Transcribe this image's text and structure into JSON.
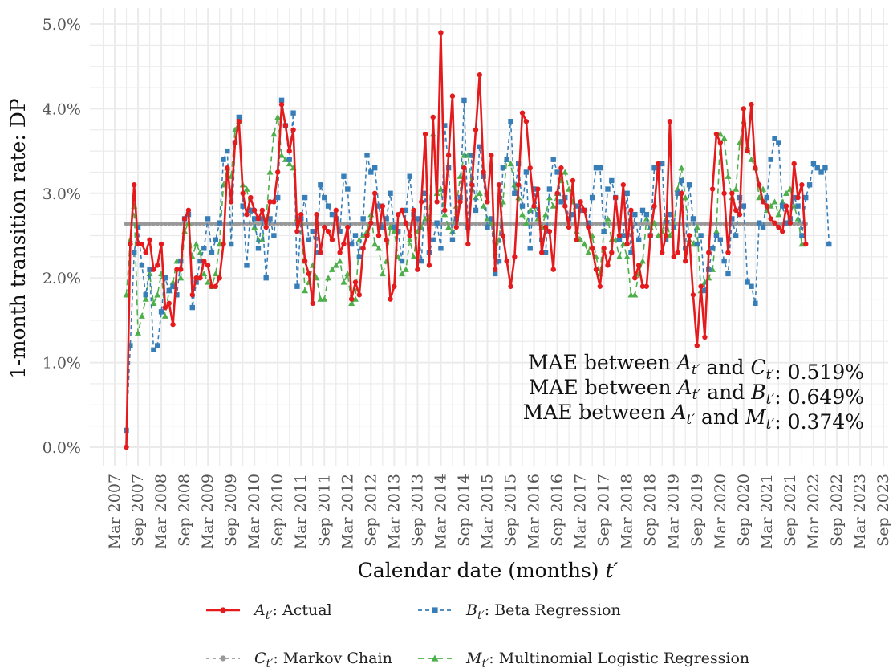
{
  "chart_data": {
    "type": "line",
    "title": "",
    "xlabel": "Calendar date (months)",
    "xlabel_var": "t′",
    "ylabel": "1-month transition rate: DP",
    "ylim": [
      0,
      5.2
    ],
    "yticks": [
      0,
      1,
      2,
      3,
      4,
      5
    ],
    "ytick_labels": [
      "0.0%",
      "1.0%",
      "2.0%",
      "3.0%",
      "4.0%",
      "5.0%"
    ],
    "x_start": "2007-03",
    "xtick_labels": [
      "Mar 2007",
      "Sep 2007",
      "Mar 2008",
      "Sep 2008",
      "Mar 2009",
      "Sep 2009",
      "Mar 2010",
      "Sep 2010",
      "Mar 2011",
      "Sep 2011",
      "Mar 2012",
      "Sep 2012",
      "Mar 2013",
      "Sep 2013",
      "Mar 2014",
      "Sep 2014",
      "Mar 2015",
      "Sep 2015",
      "Mar 2016",
      "Sep 2016",
      "Mar 2017",
      "Sep 2017",
      "Mar 2018",
      "Sep 2018",
      "Mar 2019",
      "Sep 2019",
      "Mar 2020",
      "Sep 2020",
      "Mar 2021",
      "Sep 2021",
      "Mar 2022",
      "Sep 2022",
      "Mar 2023",
      "Sep 2023"
    ],
    "xtick_months": [
      0,
      6,
      12,
      18,
      24,
      30,
      36,
      42,
      48,
      54,
      60,
      66,
      72,
      78,
      84,
      90,
      96,
      102,
      108,
      114,
      120,
      126,
      132,
      138,
      144,
      150,
      156,
      162,
      168,
      174,
      180,
      186,
      192,
      198
    ],
    "first_point_month": 3,
    "annotations": [
      {
        "prefix": "MAE between ",
        "var1": "A",
        "mid": " and ",
        "var2": "C",
        "value": ": 0.519%"
      },
      {
        "prefix": "MAE between ",
        "var1": "A",
        "mid": " and ",
        "var2": "B",
        "value": ": 0.649%"
      },
      {
        "prefix": "MAE between ",
        "var1": "A",
        "mid": " and ",
        "var2": "M",
        "value": ": 0.374%"
      }
    ],
    "series": [
      {
        "key": "actual",
        "symbol": "A",
        "name": "Actual",
        "color": "#e41a1c",
        "dash": "",
        "marker": "circle",
        "values": [
          0,
          2.4,
          3.1,
          2.4,
          2.4,
          2.3,
          2.45,
          2.1,
          2.15,
          2.4,
          1.65,
          1.7,
          1.45,
          2.1,
          2.1,
          2.7,
          2.8,
          1.8,
          2.0,
          2.0,
          2.2,
          2.15,
          1.9,
          1.9,
          2.0,
          2.4,
          3.3,
          2.9,
          3.6,
          3.85,
          3.0,
          2.75,
          2.95,
          2.8,
          2.7,
          2.8,
          2.6,
          2.9,
          2.9,
          3.25,
          4.05,
          3.8,
          3.5,
          3.75,
          2.55,
          2.75,
          2.2,
          2.05,
          1.7,
          2.75,
          2.3,
          2.6,
          2.55,
          2.45,
          2.8,
          2.3,
          2.4,
          2.6,
          1.75,
          1.95,
          1.8,
          2.35,
          2.5,
          2.65,
          3.0,
          2.5,
          2.85,
          2.45,
          1.75,
          1.9,
          2.75,
          2.8,
          2.65,
          2.5,
          2.8,
          2.1,
          2.9,
          3.7,
          2.15,
          3.9,
          2.9,
          4.9,
          2.8,
          3.45,
          4.15,
          2.6,
          2.9,
          3.3,
          2.4,
          3.1,
          3.75,
          4.4,
          3.25,
          2.9,
          3.45,
          2.1,
          3.1,
          2.5,
          2.2,
          1.9,
          2.25,
          3.1,
          3.95,
          3.85,
          3.3,
          2.85,
          3.05,
          2.3,
          2.6,
          2.55,
          2.1,
          3.0,
          3.3,
          2.85,
          2.6,
          3.15,
          2.45,
          2.9,
          2.8,
          2.6,
          2.35,
          2.1,
          1.9,
          2.35,
          2.15,
          2.3,
          2.95,
          2.5,
          3.1,
          2.4,
          2.8,
          2.0,
          2.15,
          1.9,
          1.9,
          2.5,
          2.85,
          3.35,
          2.3,
          2.5,
          3.85,
          2.25,
          2.3,
          3.0,
          2.2,
          2.5,
          1.8,
          1.2,
          1.9,
          1.3,
          2.3,
          3.05,
          3.7,
          3.6,
          3.0,
          2.3,
          3.0,
          2.8,
          2.75,
          4.0,
          3.5,
          4.05,
          3.3,
          3.1,
          2.9,
          2.85,
          2.7,
          2.65,
          2.6,
          2.55,
          2.85,
          2.65,
          3.35,
          2.95,
          3.1,
          2.4
        ]
      },
      {
        "key": "beta",
        "symbol": "B",
        "name": "Beta Regression",
        "color": "#377eb8",
        "dash": "5,4",
        "marker": "square",
        "values": [
          0.2,
          1.2,
          2.3,
          2.6,
          2.15,
          1.8,
          2.1,
          1.15,
          1.2,
          1.6,
          2.0,
          1.85,
          1.9,
          1.8,
          2.2,
          2.7,
          2.75,
          1.65,
          1.95,
          2.2,
          2.35,
          2.7,
          2.3,
          2.45,
          2.65,
          3.4,
          3.5,
          2.4,
          3.6,
          3.9,
          2.85,
          2.15,
          2.8,
          2.7,
          2.35,
          2.7,
          2.0,
          2.7,
          2.5,
          2.95,
          4.1,
          3.8,
          3.4,
          3.95,
          1.9,
          2.7,
          2.95,
          2.45,
          2.55,
          2.3,
          3.1,
          2.95,
          2.85,
          2.75,
          2.7,
          2.55,
          3.2,
          3.05,
          2.4,
          2.5,
          2.25,
          2.7,
          3.45,
          3.25,
          3.3,
          2.85,
          2.6,
          2.7,
          3.0,
          2.6,
          2.55,
          2.2,
          2.8,
          3.2,
          2.75,
          2.7,
          2.2,
          3.0,
          2.3,
          2.45,
          2.65,
          2.35,
          3.8,
          3.3,
          2.45,
          2.7,
          2.95,
          4.1,
          2.6,
          3.45,
          2.8,
          3.55,
          3.2,
          2.6,
          2.7,
          2.05,
          2.2,
          3.3,
          3.4,
          3.85,
          3.0,
          3.35,
          2.85,
          3.25,
          2.35,
          3.05,
          2.75,
          2.45,
          2.3,
          3.05,
          3.4,
          3.25,
          2.9,
          2.95,
          2.7,
          2.75,
          2.85,
          2.8,
          2.8,
          2.65,
          2.95,
          3.3,
          3.3,
          2.55,
          3.05,
          3.15,
          2.95,
          2.45,
          2.5,
          3.0,
          2.3,
          2.75,
          2.45,
          2.8,
          2.75,
          2.5,
          3.3,
          3.3,
          3.35,
          2.45,
          2.75,
          2.6,
          3.0,
          3.15,
          2.35,
          3.1,
          2.7,
          2.4,
          2.5,
          1.85,
          2.1,
          2.35,
          2.5,
          2.45,
          2.2,
          2.05,
          2.7,
          2.5,
          2.95,
          2.85,
          1.95,
          1.9,
          1.7,
          2.65,
          2.6,
          2.95,
          3.4,
          3.65,
          3.6,
          2.85,
          2.65,
          2.7,
          2.95,
          2.85,
          2.5,
          2.95,
          3.1,
          3.35,
          3.3,
          3.25,
          3.3,
          2.4
        ]
      },
      {
        "key": "markov",
        "symbol": "C",
        "name": "Markov Chain",
        "color": "#999999",
        "dash": "4,4",
        "marker": "circle",
        "constant": 2.64
      },
      {
        "key": "mlr",
        "symbol": "M",
        "name": "Multinomial Logistic Regression",
        "color": "#4daf4a",
        "dash": "7,5",
        "marker": "triangle",
        "values": [
          1.8,
          2.45,
          2.85,
          1.35,
          1.55,
          1.75,
          2.05,
          1.7,
          1.8,
          2.05,
          1.55,
          1.85,
          1.95,
          2.2,
          2.0,
          2.55,
          2.65,
          2.25,
          2.4,
          2.3,
          2.05,
          1.95,
          1.9,
          2.05,
          2.4,
          3.1,
          3.3,
          3.2,
          3.75,
          3.85,
          3.1,
          3.05,
          2.8,
          2.6,
          2.45,
          2.45,
          2.7,
          3.25,
          3.7,
          3.9,
          3.45,
          3.4,
          3.35,
          3.3,
          2.7,
          2.65,
          1.85,
          1.95,
          2.15,
          2.0,
          1.75,
          1.75,
          2.0,
          2.1,
          2.15,
          2.2,
          1.95,
          2.05,
          1.7,
          1.75,
          2.45,
          2.5,
          2.55,
          2.75,
          2.4,
          2.35,
          2.05,
          2.2,
          2.6,
          2.55,
          2.25,
          2.05,
          2.1,
          2.45,
          2.25,
          2.55,
          2.6,
          2.7,
          2.7,
          3.7,
          3.0,
          3.05,
          2.75,
          2.6,
          2.55,
          2.85,
          3.2,
          3.45,
          3.45,
          3.05,
          2.95,
          3.0,
          2.85,
          2.7,
          2.65,
          2.3,
          2.45,
          2.9,
          3.4,
          3.35,
          3.1,
          2.95,
          2.75,
          2.65,
          2.8,
          2.85,
          2.7,
          2.6,
          2.75,
          2.95,
          2.85,
          3.0,
          3.15,
          3.25,
          3.05,
          2.9,
          2.55,
          2.45,
          2.4,
          2.3,
          2.5,
          2.25,
          2.05,
          2.55,
          2.7,
          2.45,
          2.45,
          2.25,
          2.4,
          2.25,
          1.8,
          1.8,
          2.05,
          2.2,
          2.7,
          2.6,
          2.65,
          2.5,
          2.55,
          2.7,
          2.5,
          2.6,
          3.05,
          3.3,
          2.95,
          2.45,
          2.4,
          2.6,
          1.85,
          1.95,
          2.0,
          2.1,
          2.55,
          3.7,
          3.65,
          3.2,
          2.95,
          3.05,
          3.6,
          3.85,
          3.55,
          3.4,
          3.3,
          2.95,
          3.05,
          2.8,
          2.85,
          2.9,
          2.75,
          2.9,
          3.0,
          3.05,
          2.85,
          2.7,
          2.4
        ]
      }
    ]
  }
}
